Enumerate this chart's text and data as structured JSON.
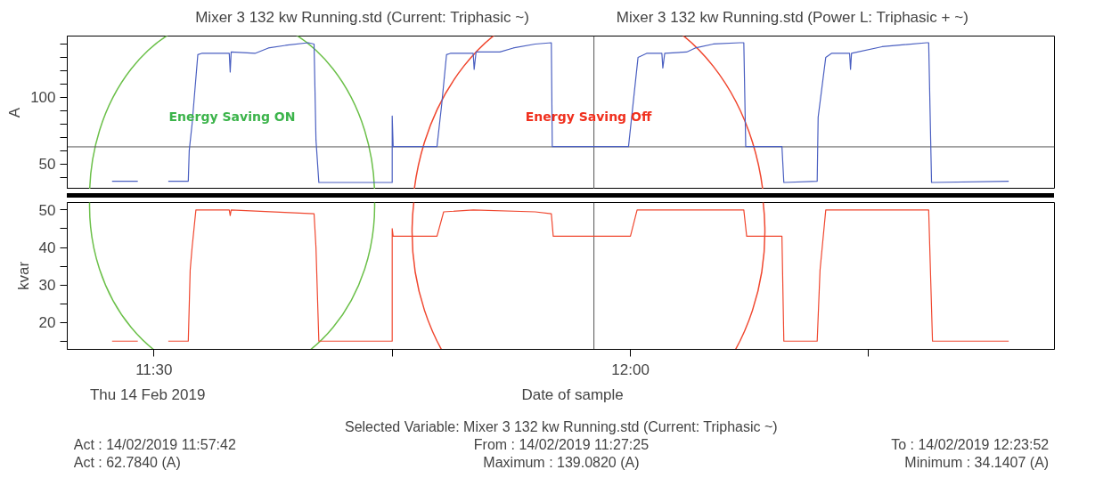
{
  "chart_data": [
    {
      "type": "line",
      "ylabel": "A",
      "xlim": [
        11.409,
        12.445
      ],
      "ylim": [
        31,
        146
      ],
      "yticks": [
        {
          "value": 40,
          "label": null
        },
        50,
        {
          "value": 60,
          "label": null
        },
        {
          "value": 70,
          "label": null
        },
        {
          "value": 80,
          "label": null
        },
        {
          "value": 90,
          "label": null
        },
        100,
        {
          "value": 110,
          "label": null
        },
        {
          "value": 120,
          "label": null
        },
        {
          "value": 130,
          "label": null
        },
        {
          "value": 140,
          "label": null
        }
      ],
      "tick_labels": "y",
      "legend": "top",
      "grid": false,
      "ref_lines": [
        {
          "axis": "y",
          "value": 62.784,
          "label": null,
          "color": "#555555"
        },
        {
          "axis": "x",
          "value": 11.9617,
          "label": null,
          "color": "#555555"
        }
      ],
      "annotations": [
        "Energy Saving ON",
        "Energy Saving Off"
      ],
      "series": [
        {
          "name": "Mixer 3 132 kw Running.std (Current: Triphasic ~)",
          "color": "#4a5fc1",
          "x": [
            11.456,
            11.483,
            11.5,
            11.515,
            11.536,
            11.537,
            11.54,
            11.546,
            11.55,
            11.579,
            11.58,
            11.581,
            11.606,
            11.62,
            11.638,
            11.662,
            11.668,
            11.67,
            11.673,
            11.75,
            11.75,
            11.751,
            11.797,
            11.802,
            11.807,
            11.811,
            11.835,
            11.836,
            11.838,
            11.863,
            11.877,
            11.9,
            11.917,
            11.918,
            11.998,
            12.008,
            12.017,
            12.033,
            12.034,
            12.036,
            12.059,
            12.068,
            12.087,
            12.115,
            12.119,
            12.121,
            12.159,
            12.161,
            12.196,
            12.197,
            12.205,
            12.211,
            12.23,
            12.231,
            12.232,
            12.264,
            12.311,
            12.313,
            12.316,
            12.397
          ],
          "values": [
            37,
            37,
            null,
            37,
            37,
            60,
            80,
            132,
            133,
            133,
            119,
            134,
            133,
            137,
            139,
            141,
            140,
            68,
            36,
            36,
            86,
            63,
            63,
            95,
            132,
            133,
            133,
            121,
            134,
            134,
            137,
            140,
            141,
            63,
            63,
            130,
            133,
            133,
            122,
            133,
            134,
            137,
            140,
            141,
            141,
            63,
            63,
            36,
            37,
            85,
            130,
            133,
            133,
            121,
            133,
            138,
            141,
            141,
            36,
            37
          ]
        }
      ]
    },
    {
      "type": "line",
      "ylabel": "kvar",
      "xlabel": "Date of sample",
      "xlim": [
        11.409,
        12.445
      ],
      "ylim": [
        12.8,
        52
      ],
      "xticks": [
        {
          "value": 11.5,
          "label": "11:30"
        },
        {
          "value": 11.75,
          "label": null
        },
        {
          "value": 12,
          "label": "12:00"
        },
        {
          "value": 12.25,
          "label": null
        }
      ],
      "yticks": [
        {
          "value": 15,
          "label": null
        },
        20,
        {
          "value": 25,
          "label": null
        },
        30,
        {
          "value": 35,
          "label": null
        },
        40,
        {
          "value": 45,
          "label": null
        },
        50
      ],
      "legend": "top",
      "grid": false,
      "ref_lines": [
        {
          "axis": "x",
          "value": 11.9617,
          "label": null,
          "color": "#555555"
        }
      ],
      "annotations": [
        "Thu 14 Feb 2019",
        "Selected Variable: Mixer 3 132 kw Running.std (Current: Triphasic ~)",
        "Act : 14/02/2019 11:57:42",
        "From : 14/02/2019 11:27:25",
        "To : 14/02/2019 12:23:52",
        "Act : 62.7840 (A)",
        "Maximum : 139.0820 (A)",
        "Minimum : 34.1407 (A)"
      ],
      "series": [
        {
          "name": "Mixer 3 132 kw Running.std (Power L: Triphasic + ~)",
          "color": "#f0472f",
          "x": [
            11.456,
            11.483,
            11.5,
            11.515,
            11.536,
            11.538,
            11.54,
            11.544,
            11.579,
            11.58,
            11.581,
            11.668,
            11.67,
            11.673,
            11.75,
            11.75,
            11.751,
            11.797,
            11.804,
            11.835,
            11.9,
            11.917,
            11.919,
            12.0,
            12.007,
            12.119,
            12.122,
            12.159,
            12.161,
            12.196,
            12.199,
            12.205,
            12.313,
            12.317,
            12.397
          ],
          "values": [
            15,
            15,
            null,
            15,
            15,
            34,
            40,
            50,
            50,
            48.5,
            50,
            49,
            40,
            15,
            15,
            45,
            43,
            43,
            49.5,
            50,
            49.5,
            49,
            43,
            43,
            50,
            50,
            43,
            43,
            15,
            15,
            34,
            50,
            50,
            15,
            15
          ]
        }
      ]
    }
  ]
}
